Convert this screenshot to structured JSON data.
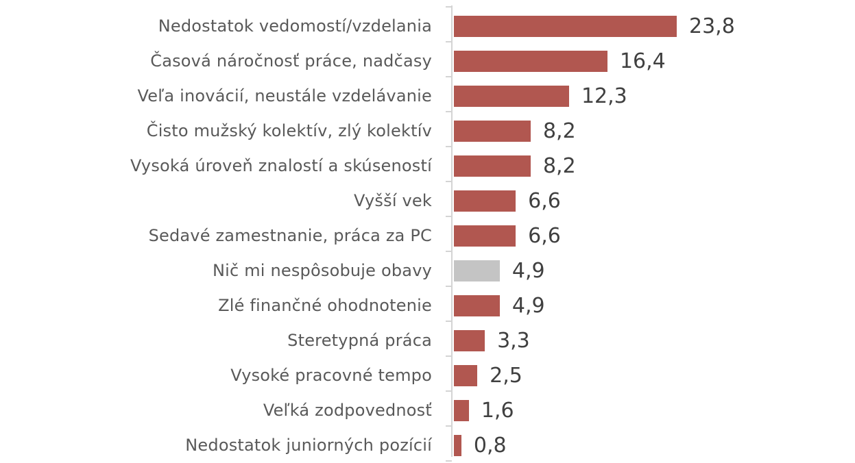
{
  "chart_data": {
    "type": "bar",
    "orientation": "horizontal",
    "title": "",
    "xlabel": "",
    "ylabel": "",
    "xlim": [
      0,
      25
    ],
    "grid": false,
    "legend": null,
    "categories": [
      "Nedostatok vedomostí/vzdelania",
      "Časová náročnosť práce, nadčasy",
      "Veľa inovácií, neustále vzdelávanie",
      "Čisto mužský kolektív, zlý kolektív",
      "Vysoká úroveň znalostí a skúseností",
      "Vyšší vek",
      "Sedavé zamestnanie, práca za PC",
      "Nič mi nespôsobuje obavy",
      "Zlé finančné ohodnotenie",
      "Steretypná práca",
      "Vysoké pracovné tempo",
      "Veľká zodpovednosť",
      "Nedostatok juniorných pozícií"
    ],
    "values": [
      23.8,
      16.4,
      12.3,
      8.2,
      8.2,
      6.6,
      6.6,
      4.9,
      4.9,
      3.3,
      2.5,
      1.6,
      0.8
    ],
    "value_labels": [
      "23,8",
      "16,4",
      "12,3",
      "8,2",
      "8,2",
      "6,6",
      "6,6",
      "4,9",
      "4,9",
      "3,3",
      "2,5",
      "1,6",
      "0,8"
    ],
    "bar_colors": [
      "#b15750",
      "#b15750",
      "#b15750",
      "#b15750",
      "#b15750",
      "#b15750",
      "#b15750",
      "#c4c4c4",
      "#b15750",
      "#b15750",
      "#b15750",
      "#b15750",
      "#b15750"
    ],
    "colors": {
      "primary": "#b15750",
      "neutral": "#c4c4c4",
      "axis": "#d4d4d4",
      "label_text": "#595959",
      "value_text": "#404040"
    }
  }
}
